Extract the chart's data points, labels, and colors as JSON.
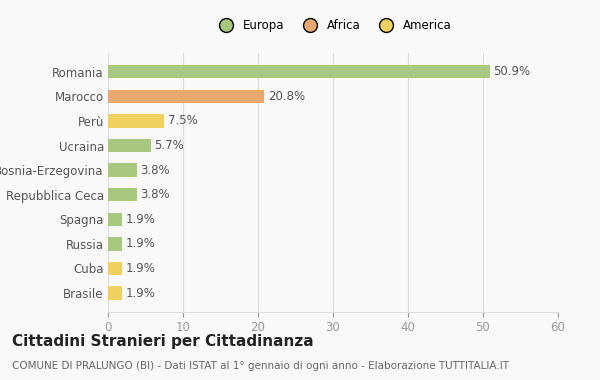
{
  "categories": [
    "Romania",
    "Marocco",
    "Perù",
    "Ucraina",
    "Bosnia-Erzegovina",
    "Repubblica Ceca",
    "Spagna",
    "Russia",
    "Cuba",
    "Brasile"
  ],
  "values": [
    50.9,
    20.8,
    7.5,
    5.7,
    3.8,
    3.8,
    1.9,
    1.9,
    1.9,
    1.9
  ],
  "colors": [
    "#a8c880",
    "#e8a870",
    "#f0d060",
    "#a8c880",
    "#a8c880",
    "#a8c880",
    "#a8c880",
    "#a8c880",
    "#f0d060",
    "#f0d060"
  ],
  "legend": [
    {
      "label": "Europa",
      "color": "#a8c880"
    },
    {
      "label": "Africa",
      "color": "#e8a870"
    },
    {
      "label": "America",
      "color": "#f0d060"
    }
  ],
  "xlim": [
    0,
    60
  ],
  "xticks": [
    0,
    10,
    20,
    30,
    40,
    50,
    60
  ],
  "title": "Cittadini Stranieri per Cittadinanza",
  "subtitle": "COMUNE DI PRALUNGO (BI) - Dati ISTAT al 1° gennaio di ogni anno - Elaborazione TUTTITALIA.IT",
  "background_color": "#f9f9f9",
  "grid_color": "#dddddd",
  "bar_height": 0.55,
  "label_fontsize": 8.5,
  "title_fontsize": 11,
  "subtitle_fontsize": 7.5,
  "value_fontsize": 8.5,
  "value_color": "#555555",
  "ytick_color": "#555555",
  "xtick_color": "#999999"
}
